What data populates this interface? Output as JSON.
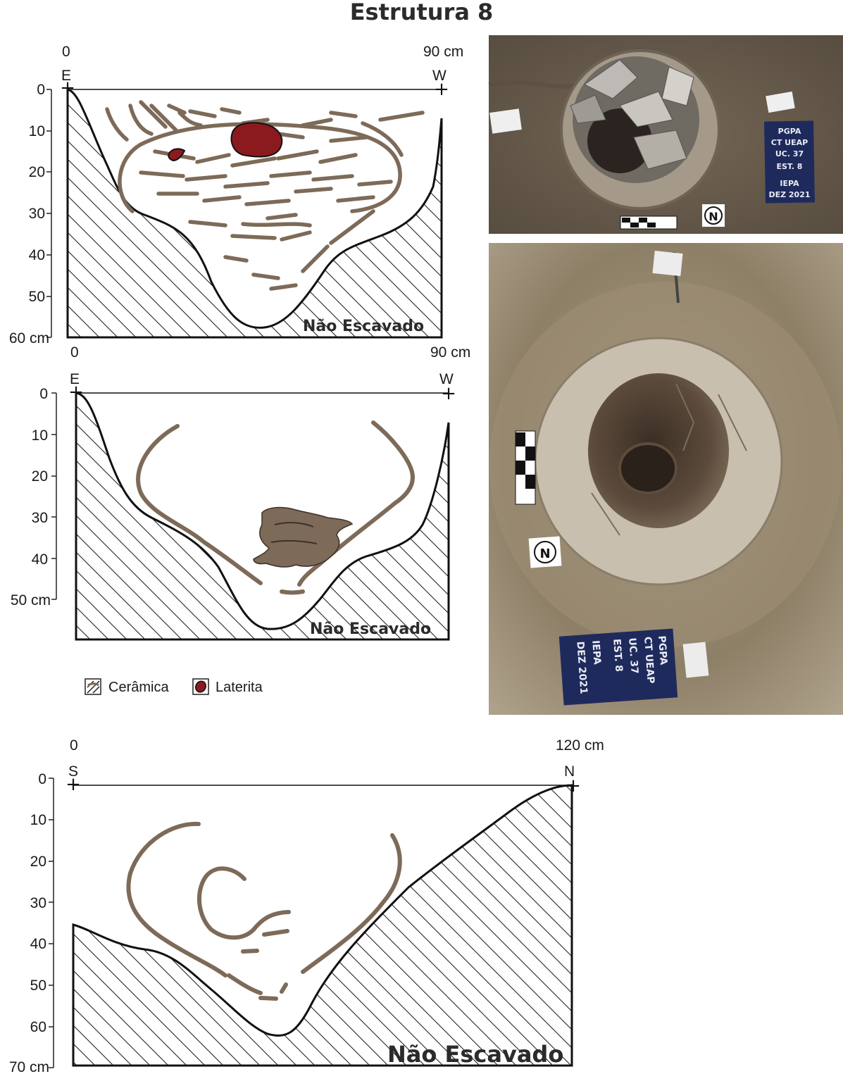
{
  "title": "Estrutura 8",
  "sections": [
    {
      "x_left": "0",
      "x_right": "90 cm",
      "dir_left": "E",
      "dir_right": "W",
      "depth_ticks": [
        "0",
        "10",
        "20",
        "30",
        "40",
        "50",
        "60 cm"
      ],
      "unexcavated": "Não Escavado"
    },
    {
      "x_left": "0",
      "x_right": "90 cm",
      "dir_left": "E",
      "dir_right": "W",
      "depth_ticks": [
        "0",
        "10",
        "20",
        "30",
        "40",
        "50 cm"
      ],
      "unexcavated": "Não Escavado"
    },
    {
      "x_left": "0",
      "x_right": "120 cm",
      "dir_left": "S",
      "dir_right": "N",
      "depth_ticks": [
        "0",
        "10",
        "20",
        "30",
        "40",
        "50",
        "60",
        "70 cm"
      ],
      "unexcavated": "Não Escavado"
    }
  ],
  "legend": [
    {
      "label": "Cerâmica",
      "swatch": "#7d6a58"
    },
    {
      "label": "Laterita",
      "swatch": "#8b1a1f"
    }
  ],
  "photos": [
    {
      "board": [
        "PGPA",
        "CT UEAP",
        "UC. 37",
        "EST. 8",
        "IEPA",
        "DEZ 2021"
      ],
      "north": "N"
    },
    {
      "board": [
        "PGPA",
        "CT UEAP",
        "UC. 37",
        "EST. 8",
        "IEPA",
        "DEZ 2021"
      ],
      "north": "N"
    }
  ],
  "colors": {
    "ceramic": "#7d6a58",
    "laterite": "#8b1a1f",
    "board": "#1f2a5c"
  }
}
